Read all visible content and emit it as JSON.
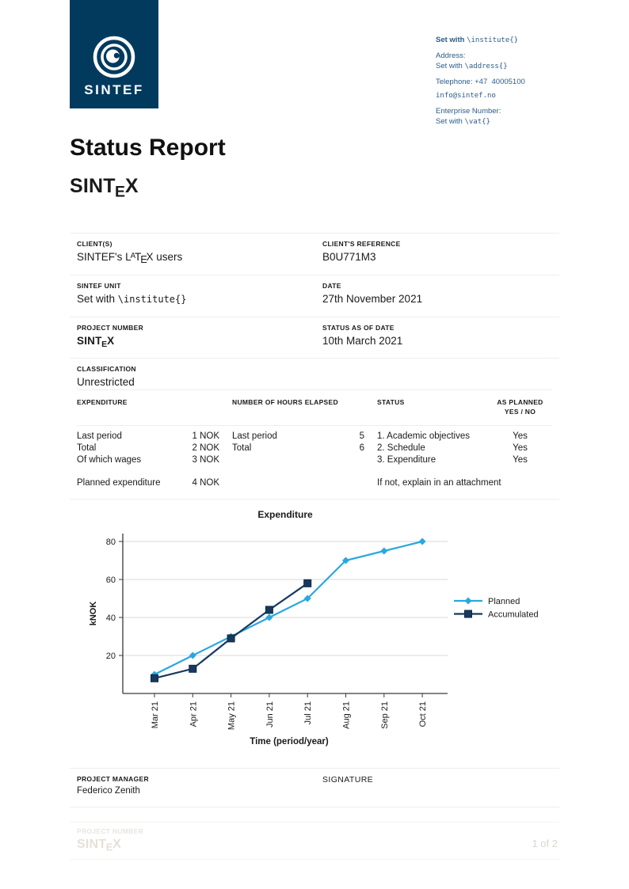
{
  "brand": {
    "logo_text": "SINTEF",
    "navy": "#023A5E"
  },
  "contact": {
    "institute_set": "Set with ",
    "institute_code": "\\institute{}",
    "address_label": "Address:",
    "address_set": "Set with ",
    "address_code": "\\address{}",
    "telephone": "Telephone: +47  40005100",
    "email": "info@sintef.no",
    "enterprise_label": "Enterprise Number:",
    "vat_set": "Set with ",
    "vat_code": "\\vat{}"
  },
  "title": "Status Report",
  "project_logo": {
    "pre": "SINT",
    "sub": "E",
    "post": "X"
  },
  "latex_logo": {
    "l": "L",
    "a": "A",
    "t": "T",
    "e": "E",
    "x": "X"
  },
  "info_table": {
    "clients": {
      "label": "CLIENT(S)",
      "value_pre": "SINTEF's ",
      "value_post": " users"
    },
    "reference": {
      "label": "CLIENT'S REFERENCE",
      "value": "B0U771M3"
    },
    "unit": {
      "label": "SINTEF UNIT",
      "value_pre": "Set with ",
      "value_code": "\\institute{}"
    },
    "date": {
      "label": "DATE",
      "value": "27th November 2021"
    },
    "project_number": {
      "label": "PROJECT NUMBER"
    },
    "status_date": {
      "label": "STATUS AS OF DATE",
      "value": "10th March 2021"
    },
    "classification": {
      "label": "CLASSIFICATION",
      "value": "Unrestricted"
    }
  },
  "expenditure_table": {
    "headers": {
      "expenditure": "EXPENDITURE",
      "hours": "NUMBER OF HOURS ELAPSED",
      "status": "STATUS",
      "planned_line1": "AS PLANNED",
      "planned_line2": "YES / NO"
    },
    "rows": [
      {
        "exp_label": "Last period",
        "exp_value": "1 NOK",
        "hours_label": "Last period",
        "hours_value": "5",
        "status": "1. Academic objectives",
        "planned": "Yes"
      },
      {
        "exp_label": "Total",
        "exp_value": "2 NOK",
        "hours_label": "Total",
        "hours_value": "6",
        "status": "2. Schedule",
        "planned": "Yes"
      },
      {
        "exp_label": "Of which wages",
        "exp_value": "3 NOK",
        "hours_label": "",
        "hours_value": "",
        "status": "3. Expenditure",
        "planned": "Yes"
      }
    ],
    "footer_row": {
      "exp_label": "Planned expenditure",
      "exp_value": "4 NOK",
      "note": "If not, explain in an attachment"
    }
  },
  "chart_data": {
    "type": "line",
    "title": "Expenditure",
    "xlabel": "Time (period/year)",
    "ylabel": "kNOK",
    "categories": [
      "Mar 21",
      "Apr 21",
      "May 21",
      "Jun 21",
      "Jul 21",
      "Aug 21",
      "Sep 21",
      "Oct 21"
    ],
    "series": [
      {
        "name": "Planned",
        "color": "#29A8E0",
        "marker": "diamond",
        "values": [
          10,
          20,
          30,
          40,
          50,
          70,
          75,
          80
        ]
      },
      {
        "name": "Accumulated",
        "color": "#17395D",
        "marker": "square",
        "values": [
          8,
          13,
          29,
          44,
          58
        ]
      }
    ],
    "ylim": [
      0,
      85
    ],
    "yticks": [
      20,
      40,
      60,
      80
    ],
    "grid": true,
    "legend_position": "right",
    "grid_color": "#D8D8D8",
    "axis_color": "#3a3a3a"
  },
  "signature_section": {
    "manager_label": "PROJECT MANAGER",
    "manager_value": "Federico Zenith",
    "signature_label": "SIGNATURE"
  },
  "footer": {
    "project_number_label": "PROJECT NUMBER",
    "page": "1 of 2"
  }
}
